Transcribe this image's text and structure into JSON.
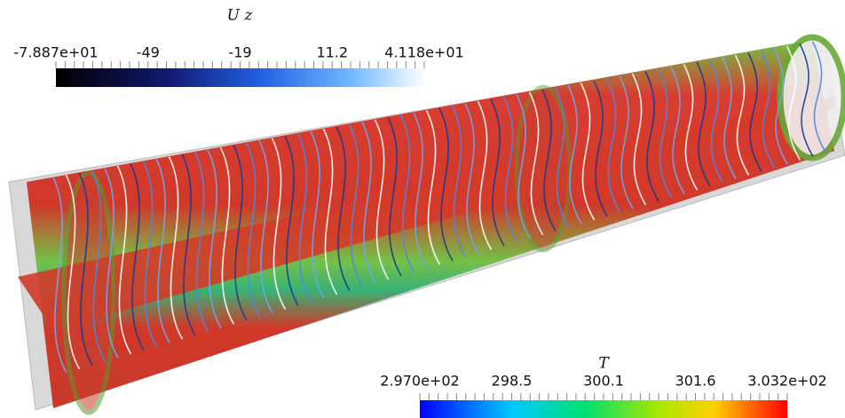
{
  "colorbars": [
    {
      "title": "U z",
      "labels": [
        "-7.887e+01",
        "-49",
        "-19",
        "11.2",
        "4.118e+01"
      ]
    },
    {
      "title": "T",
      "labels": [
        "2.970e+02",
        "298.5",
        "300.1",
        "301.6",
        "3.032e+02"
      ]
    }
  ]
}
